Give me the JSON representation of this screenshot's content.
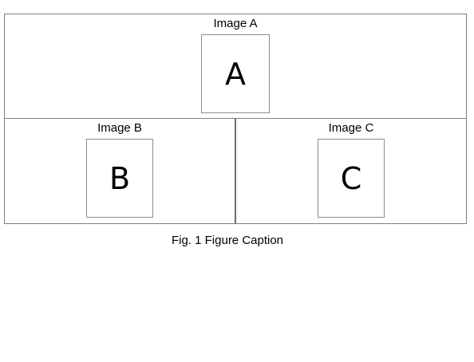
{
  "figure": {
    "panels": [
      {
        "label": "Image A",
        "content": "A"
      },
      {
        "label": "Image B",
        "content": "B"
      },
      {
        "label": "Image C",
        "content": "C"
      }
    ],
    "caption": "Fig. 1 Figure Caption"
  }
}
